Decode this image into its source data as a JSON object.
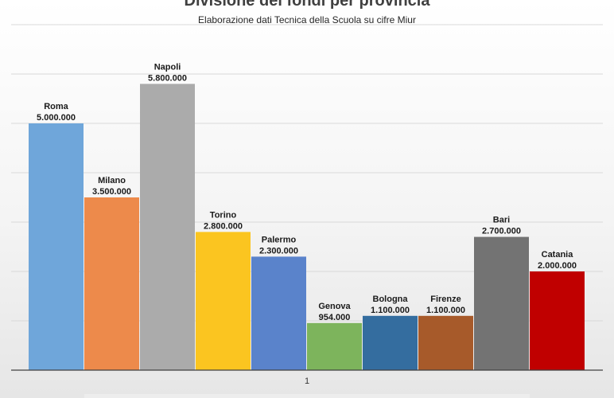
{
  "chart_data": {
    "type": "bar",
    "title": "Divisione dei fondi per provincia",
    "subtitle": "Elaborazione dati Tecnica della Scuola su cifre Miur",
    "x_tick": "1",
    "ylim": [
      0,
      7000000
    ],
    "grid": true,
    "series": [
      {
        "name": "Roma",
        "value": 5000000,
        "label": "5.000.000",
        "color": "#6fa6da"
      },
      {
        "name": "Milano",
        "value": 3500000,
        "label": "3.500.000",
        "color": "#ed8a4b"
      },
      {
        "name": "Napoli",
        "value": 5800000,
        "label": "5.800.000",
        "color": "#ababab"
      },
      {
        "name": "Torino",
        "value": 2800000,
        "label": "2.800.000",
        "color": "#fbc520"
      },
      {
        "name": "Palermo",
        "value": 2300000,
        "label": "2.300.000",
        "color": "#5a83cb"
      },
      {
        "name": "Genova",
        "value": 954000,
        "label": "954.000",
        "color": "#7db45c"
      },
      {
        "name": "Bologna",
        "value": 1100000,
        "label": "1.100.000",
        "color": "#346d9f"
      },
      {
        "name": "Firenze",
        "value": 1100000,
        "label": "1.100.000",
        "color": "#a75a2a"
      },
      {
        "name": "Bari",
        "value": 2700000,
        "label": "2.700.000",
        "color": "#737373"
      },
      {
        "name": "Catania",
        "value": 2000000,
        "label": "2.000.000",
        "color": "#c00000"
      }
    ]
  }
}
